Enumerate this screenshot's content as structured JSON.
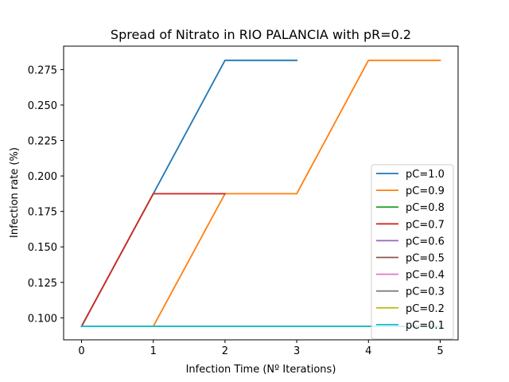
{
  "chart_data": {
    "type": "line",
    "title": "Spread of Nitrato in RIO PALANCIA with pR=0.2",
    "xlabel": "Infection Time (Nº Iterations)",
    "ylabel": "Infection rate (%)",
    "xlim": [
      -0.25,
      5.25
    ],
    "ylim": [
      0.0845,
      0.2915
    ],
    "xticks": [
      0,
      1,
      2,
      3,
      4,
      5
    ],
    "xtick_labels": [
      "0",
      "1",
      "2",
      "3",
      "4",
      "5"
    ],
    "yticks": [
      0.1,
      0.125,
      0.15,
      0.175,
      0.2,
      0.225,
      0.25,
      0.275
    ],
    "ytick_labels": [
      "0.100",
      "0.125",
      "0.150",
      "0.175",
      "0.200",
      "0.225",
      "0.250",
      "0.275"
    ],
    "grid": false,
    "legend_position": "lower-right",
    "series": [
      {
        "name": "pC=1.0",
        "color": "#1f77b4",
        "x": [
          0,
          1,
          2,
          3
        ],
        "y": [
          0.094,
          0.1875,
          0.2815,
          0.2815
        ]
      },
      {
        "name": "pC=0.9",
        "color": "#ff7f0e",
        "x": [
          0,
          1,
          2,
          3,
          4,
          5
        ],
        "y": [
          0.094,
          0.094,
          0.1875,
          0.1875,
          0.2815,
          0.2815
        ]
      },
      {
        "name": "pC=0.8",
        "color": "#2ca02c",
        "x": [
          0,
          1,
          2
        ],
        "y": [
          0.094,
          0.1875,
          0.1875
        ]
      },
      {
        "name": "pC=0.7",
        "color": "#d62728",
        "x": [
          0,
          1,
          2
        ],
        "y": [
          0.094,
          0.1875,
          0.1875
        ]
      },
      {
        "name": "pC=0.6",
        "color": "#9467bd",
        "x": [
          0,
          1,
          2,
          3,
          4,
          5
        ],
        "y": [
          0.094,
          0.094,
          0.094,
          0.094,
          0.094,
          0.094
        ]
      },
      {
        "name": "pC=0.5",
        "color": "#8c564b",
        "x": [
          0,
          1,
          2,
          3,
          4,
          5
        ],
        "y": [
          0.094,
          0.094,
          0.094,
          0.094,
          0.094,
          0.094
        ]
      },
      {
        "name": "pC=0.4",
        "color": "#e377c2",
        "x": [
          0,
          1,
          2,
          3,
          4,
          5
        ],
        "y": [
          0.094,
          0.094,
          0.094,
          0.094,
          0.094,
          0.094
        ]
      },
      {
        "name": "pC=0.3",
        "color": "#7f7f7f",
        "x": [
          0,
          1,
          2,
          3,
          4,
          5
        ],
        "y": [
          0.094,
          0.094,
          0.094,
          0.094,
          0.094,
          0.094
        ]
      },
      {
        "name": "pC=0.2",
        "color": "#bcbd22",
        "x": [
          0,
          1,
          2,
          3,
          4,
          5
        ],
        "y": [
          0.094,
          0.094,
          0.094,
          0.094,
          0.094,
          0.094
        ]
      },
      {
        "name": "pC=0.1",
        "color": "#17becf",
        "x": [
          0,
          1,
          2,
          3,
          4,
          5
        ],
        "y": [
          0.094,
          0.094,
          0.094,
          0.094,
          0.094,
          0.094
        ]
      }
    ]
  }
}
